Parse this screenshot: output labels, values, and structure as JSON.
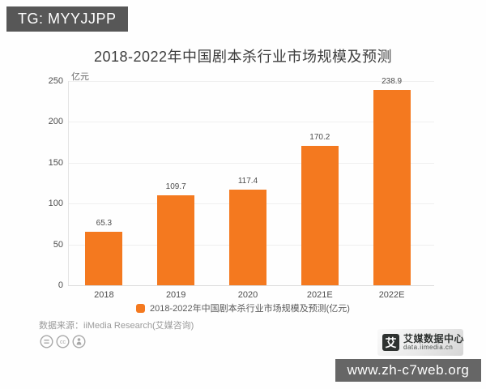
{
  "badge": {
    "text": "TG: MYYJJPP"
  },
  "watermark": {
    "text": "www.zh-c7web.org"
  },
  "chart_data": {
    "type": "bar",
    "title": "2018-2022年中国剧本杀行业市场规模及预测",
    "unit_label": "亿元",
    "categories": [
      "2018",
      "2019",
      "2020",
      "2021E",
      "2022E"
    ],
    "values": [
      65.3,
      109.7,
      117.4,
      170.2,
      238.9
    ],
    "ylim": [
      0,
      250
    ],
    "yticks": [
      0,
      50,
      100,
      150,
      200,
      250
    ],
    "legend": "2018-2022年中国剧本杀行业市场规模及预测(亿元)",
    "legend_position": "bottom",
    "grid": true,
    "bar_color": "#f4791f"
  },
  "footer": {
    "source": "数据来源：iiMedia Research(艾媒咨询)",
    "license_icons": [
      "equals-icon",
      "cc-icon",
      "person-icon"
    ]
  },
  "logo": {
    "mark": "艾",
    "name": "艾媒数据中心",
    "domain": "data.iimedia.cn"
  }
}
